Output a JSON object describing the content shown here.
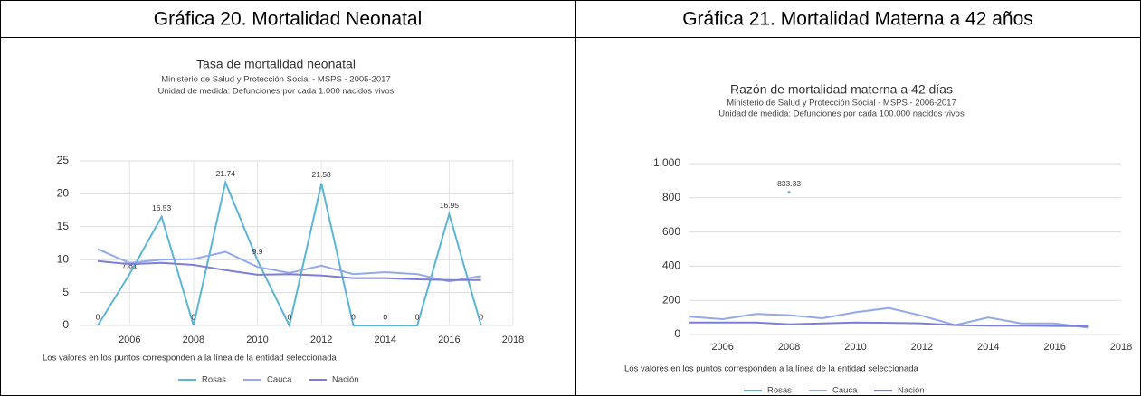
{
  "table": {
    "headers": [
      "Gráfica 20. Mortalidad Neonatal",
      "Gráfica 21. Mortalidad Materna a 42 años"
    ]
  },
  "chart_data": [
    {
      "type": "line",
      "title": "Tasa de mortalidad neonatal",
      "subtitle": "Ministerio de Salud y Protección Social - MSPS - 2005-2017",
      "unit": "Unidad de medida: Defunciones por cada 1.000 nacidos vivos",
      "note": "Los valores en los puntos corresponden a la línea de la entidad seleccionada",
      "x": [
        2005,
        2006,
        2007,
        2008,
        2009,
        2010,
        2011,
        2012,
        2013,
        2014,
        2015,
        2016,
        2017
      ],
      "xlim": [
        2005,
        2018
      ],
      "xticks": [
        2006,
        2008,
        2010,
        2012,
        2014,
        2016,
        2018
      ],
      "ylim": [
        0,
        25
      ],
      "yticks": [
        0,
        5,
        10,
        15,
        20,
        25
      ],
      "grid": true,
      "xgrid": true,
      "legend": "bottom",
      "series": [
        {
          "name": "Rosas",
          "color": "#5bb5d5",
          "show_labels": true,
          "values": [
            0,
            7.81,
            16.53,
            0,
            21.74,
            9.9,
            0,
            21.58,
            0,
            0,
            0,
            16.95,
            0
          ]
        },
        {
          "name": "Cauca",
          "color": "#93a9ea",
          "values": [
            11.6,
            9.5,
            10.0,
            10.1,
            11.2,
            8.9,
            8.0,
            9.1,
            7.8,
            8.1,
            7.8,
            6.7,
            7.5
          ]
        },
        {
          "name": "Nación",
          "color": "#7c7fd9",
          "values": [
            9.8,
            9.3,
            9.5,
            9.2,
            8.4,
            7.7,
            7.8,
            7.6,
            7.2,
            7.2,
            7.0,
            6.9,
            6.9
          ]
        }
      ]
    },
    {
      "type": "line",
      "title": "Razón de mortalidad materna a 42 días",
      "subtitle": "Ministerio de Salud y Protección Social - MSPS - 2006-2017",
      "unit": "Unidad de medida: Defunciones por cada 100.000 nacidos vivos",
      "note": "Los valores en los puntos corresponden a la línea de la entidad seleccionada",
      "x": [
        2005,
        2006,
        2007,
        2008,
        2009,
        2010,
        2011,
        2012,
        2013,
        2014,
        2015,
        2016,
        2017
      ],
      "xlim": [
        2005,
        2018
      ],
      "xticks": [
        2006,
        2008,
        2010,
        2012,
        2014,
        2016,
        2018
      ],
      "ylim": [
        0,
        1000
      ],
      "yticks": [
        0,
        200,
        400,
        600,
        800,
        {
          "value": 1000,
          "label": "1,000"
        }
      ],
      "grid": true,
      "xgrid": false,
      "legend": "bottom",
      "series": [
        {
          "name": "Rosas",
          "color": "#5bb5d5",
          "show_labels": true,
          "values": [
            null,
            null,
            null,
            833.33,
            null,
            null,
            null,
            null,
            null,
            null,
            null,
            null,
            null
          ]
        },
        {
          "name": "Cauca",
          "color": "#93a9ea",
          "values": [
            105,
            90,
            120,
            113,
            95,
            130,
            155,
            110,
            55,
            100,
            65,
            65,
            40
          ]
        },
        {
          "name": "Nación",
          "color": "#7c7fd9",
          "values": [
            70,
            70,
            70,
            60,
            65,
            70,
            68,
            65,
            55,
            52,
            52,
            50,
            48
          ]
        }
      ]
    }
  ]
}
